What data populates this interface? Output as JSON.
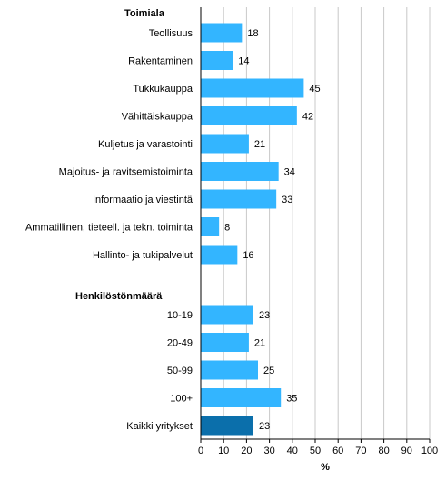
{
  "chart_data": {
    "type": "bar",
    "orientation": "horizontal",
    "sections": [
      {
        "title": "Toimiala",
        "rows": [
          {
            "label": "Teollisuus",
            "value": 18
          },
          {
            "label": "Rakentaminen",
            "value": 14
          },
          {
            "label": "Tukkukauppa",
            "value": 45
          },
          {
            "label": "Vähittäiskauppa",
            "value": 42
          },
          {
            "label": "Kuljetus ja varastointi",
            "value": 21
          },
          {
            "label": "Majoitus- ja ravitsemistoiminta",
            "value": 34
          },
          {
            "label": "Informaatio ja viestintä",
            "value": 33
          },
          {
            "label": "Ammatillinen, tieteell. ja tekn. toiminta",
            "value": 8
          },
          {
            "label": "Hallinto- ja tukipalvelut",
            "value": 16
          }
        ]
      },
      {
        "title": "Henkilöstönmäärä",
        "rows": [
          {
            "label": "10-19",
            "value": 23
          },
          {
            "label": "20-49",
            "value": 21
          },
          {
            "label": "50-99",
            "value": 25
          },
          {
            "label": "100+",
            "value": 35
          },
          {
            "label": "Kaikki yritykset",
            "value": 23,
            "highlight": true
          }
        ]
      }
    ],
    "xlabel": "%",
    "xlim": [
      0,
      100
    ],
    "xticks": [
      0,
      10,
      20,
      30,
      40,
      50,
      60,
      70,
      80,
      90,
      100
    ],
    "grid": true,
    "colors": {
      "bar": "#33b5ff",
      "highlight": "#0b6fab",
      "grid": "#c8c8c8"
    }
  }
}
